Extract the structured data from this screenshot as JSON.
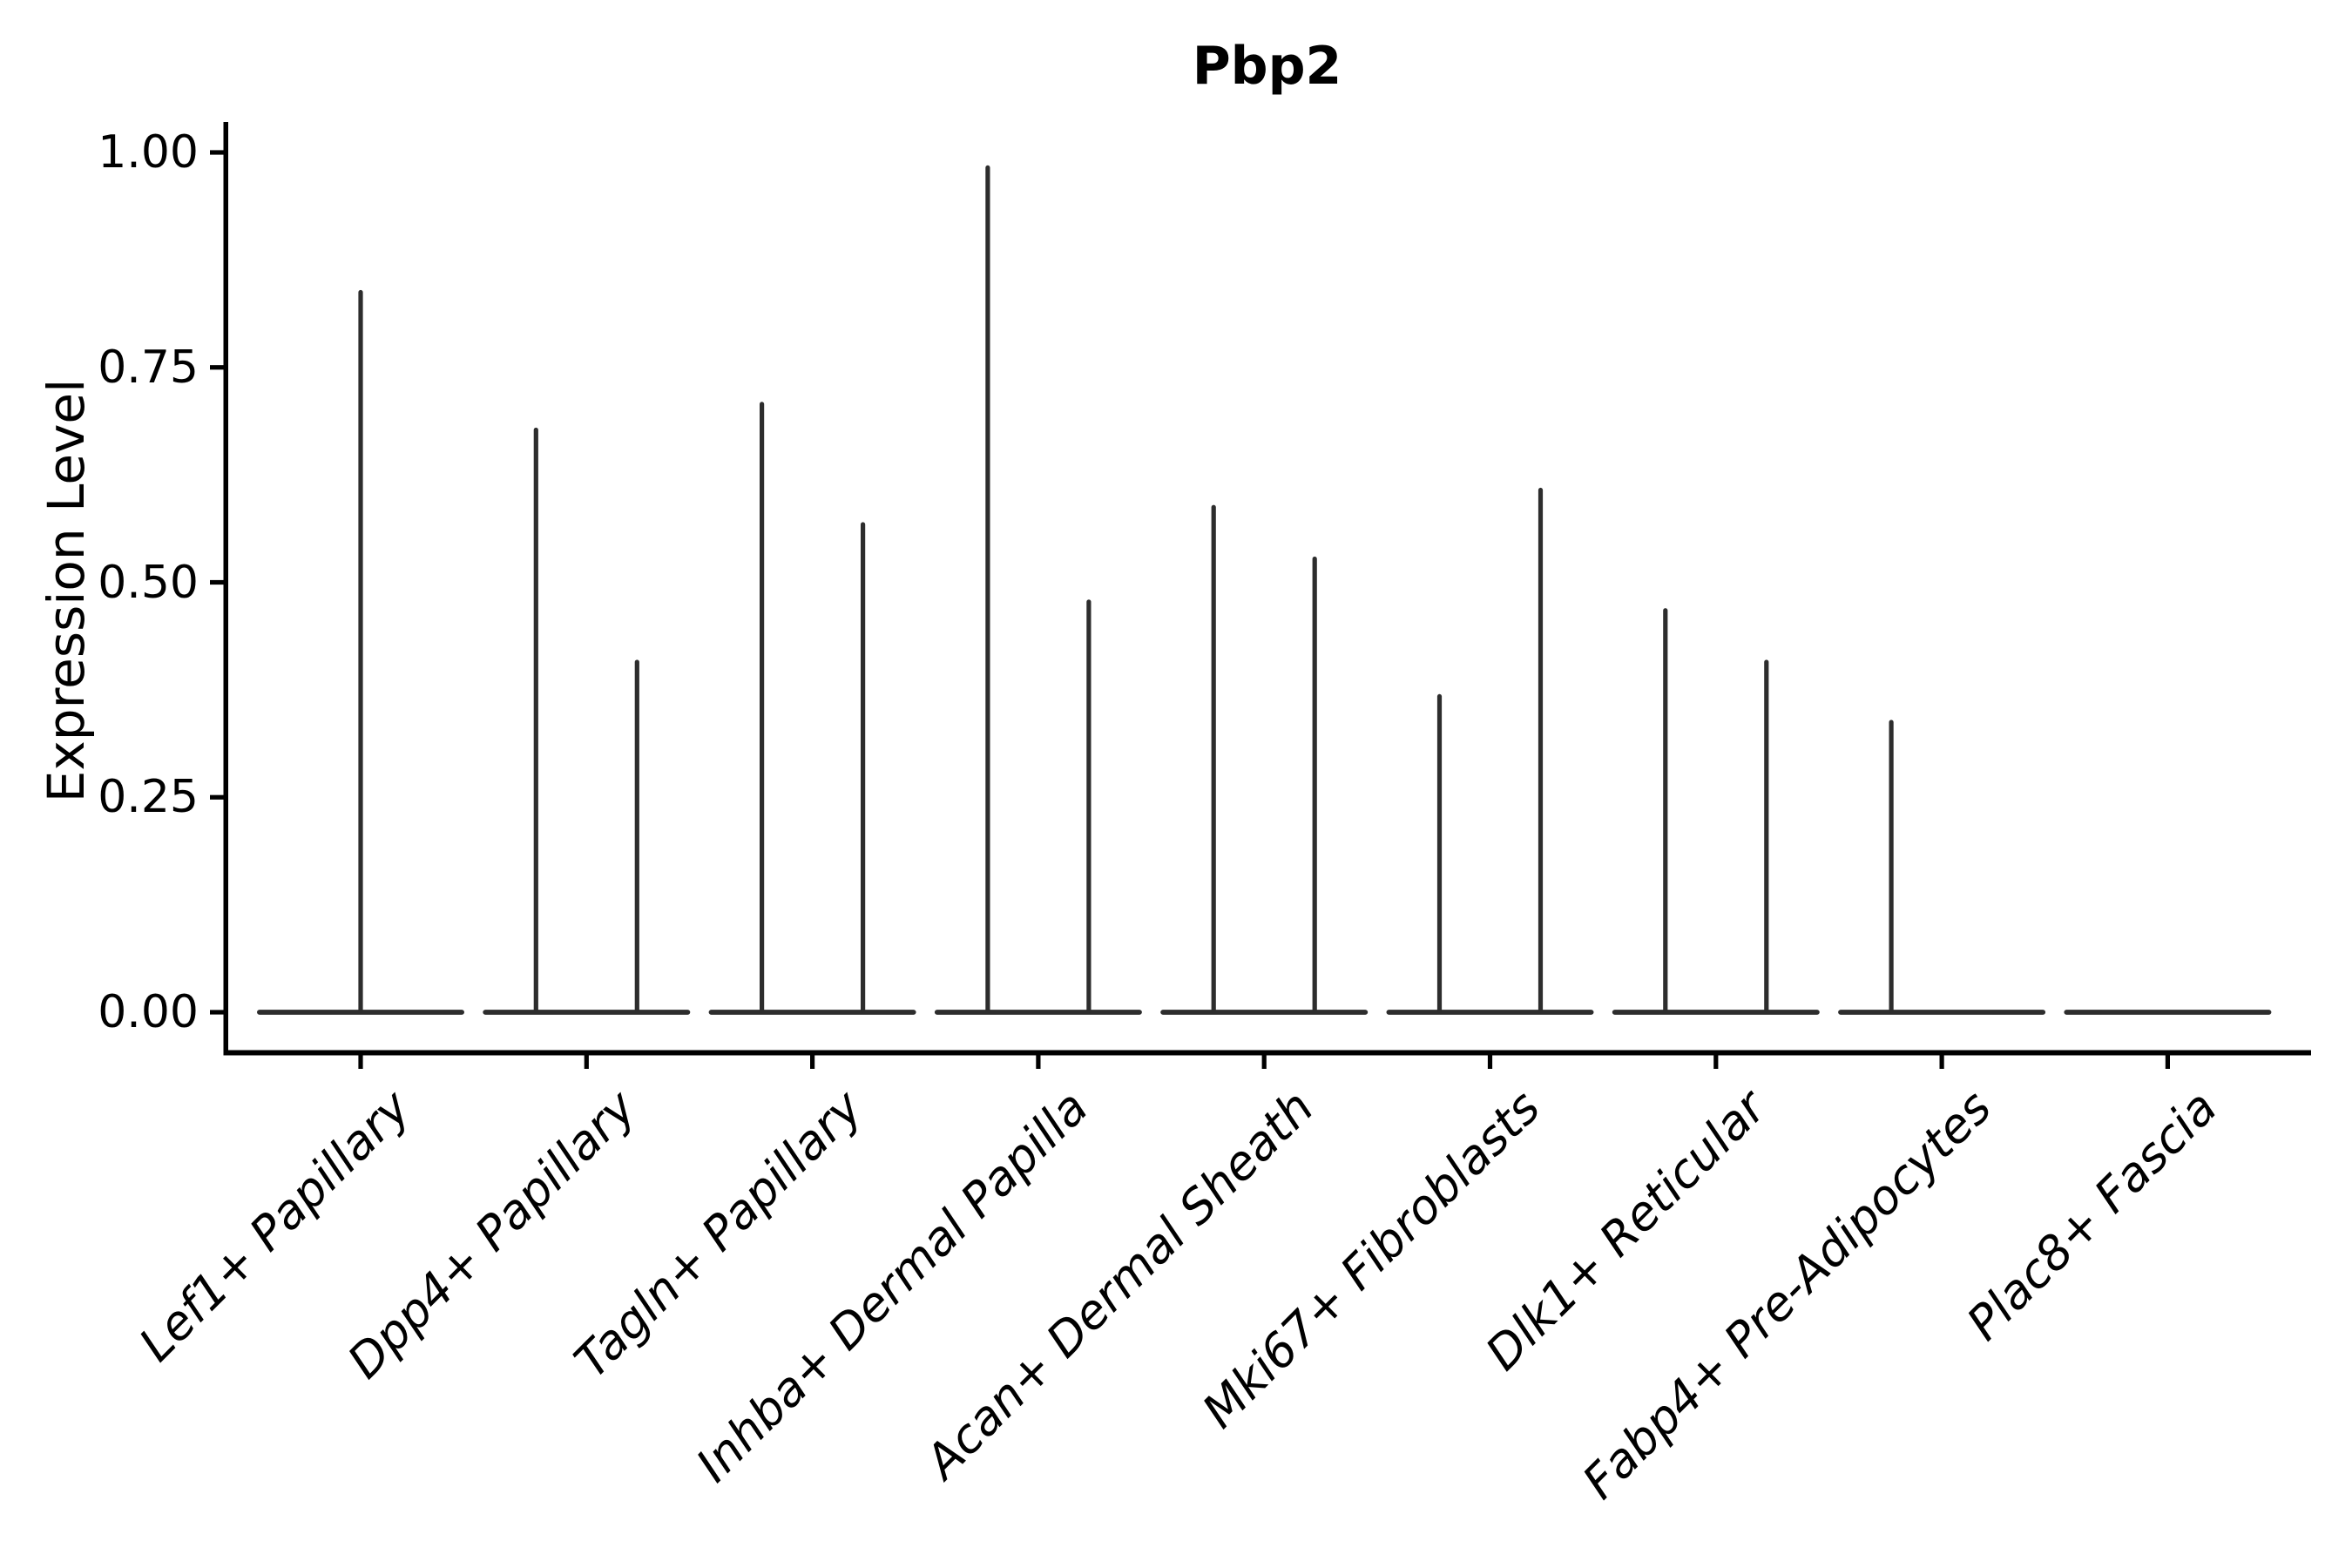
{
  "chart_data": {
    "type": "violin",
    "title": "Pbp2",
    "ylabel": "Expression Level",
    "xlabel": "",
    "ylim": [
      0,
      1.05
    ],
    "grid": false,
    "legend": "none",
    "x_tick_rotation_deg": 45,
    "yticks": [
      {
        "value": 1.0,
        "label": "1.00"
      },
      {
        "value": 0.75,
        "label": "0.75"
      },
      {
        "value": 0.5,
        "label": "0.50"
      },
      {
        "value": 0.25,
        "label": "0.25"
      },
      {
        "value": 0.0,
        "label": "0.00"
      }
    ],
    "baseline_value": 0.0,
    "categories": [
      {
        "label": "Lef1+ Papillary",
        "violins": [
          {
            "slot": "center",
            "peak": 0.84
          }
        ]
      },
      {
        "label": "Dpp4+ Papillary",
        "violins": [
          {
            "slot": "left",
            "peak": 0.68
          },
          {
            "slot": "right",
            "peak": 0.41
          }
        ]
      },
      {
        "label": "Tagln+ Papillary",
        "violins": [
          {
            "slot": "left",
            "peak": 0.71
          },
          {
            "slot": "right",
            "peak": 0.57
          }
        ]
      },
      {
        "label": "Inhba+ Dermal Papilla",
        "violins": [
          {
            "slot": "left",
            "peak": 0.985
          },
          {
            "slot": "right",
            "peak": 0.48
          }
        ]
      },
      {
        "label": "Acan+ Dermal Sheath",
        "violins": [
          {
            "slot": "left",
            "peak": 0.59
          },
          {
            "slot": "right",
            "peak": 0.53
          }
        ]
      },
      {
        "label": "Mki67+ Fibroblasts",
        "violins": [
          {
            "slot": "left",
            "peak": 0.37
          },
          {
            "slot": "right",
            "peak": 0.61
          }
        ]
      },
      {
        "label": "Dlk1+ Reticular",
        "violins": [
          {
            "slot": "left",
            "peak": 0.47
          },
          {
            "slot": "right",
            "peak": 0.41
          }
        ]
      },
      {
        "label": "Fabp4+ Pre-Adipocytes",
        "violins": [
          {
            "slot": "left",
            "peak": 0.34
          }
        ]
      },
      {
        "label": "Plac8+ Fascia",
        "violins": []
      }
    ],
    "colors": {
      "violin": "#2d2d2d",
      "axis": "#000000",
      "text": "#000000",
      "background": "#ffffff"
    }
  }
}
